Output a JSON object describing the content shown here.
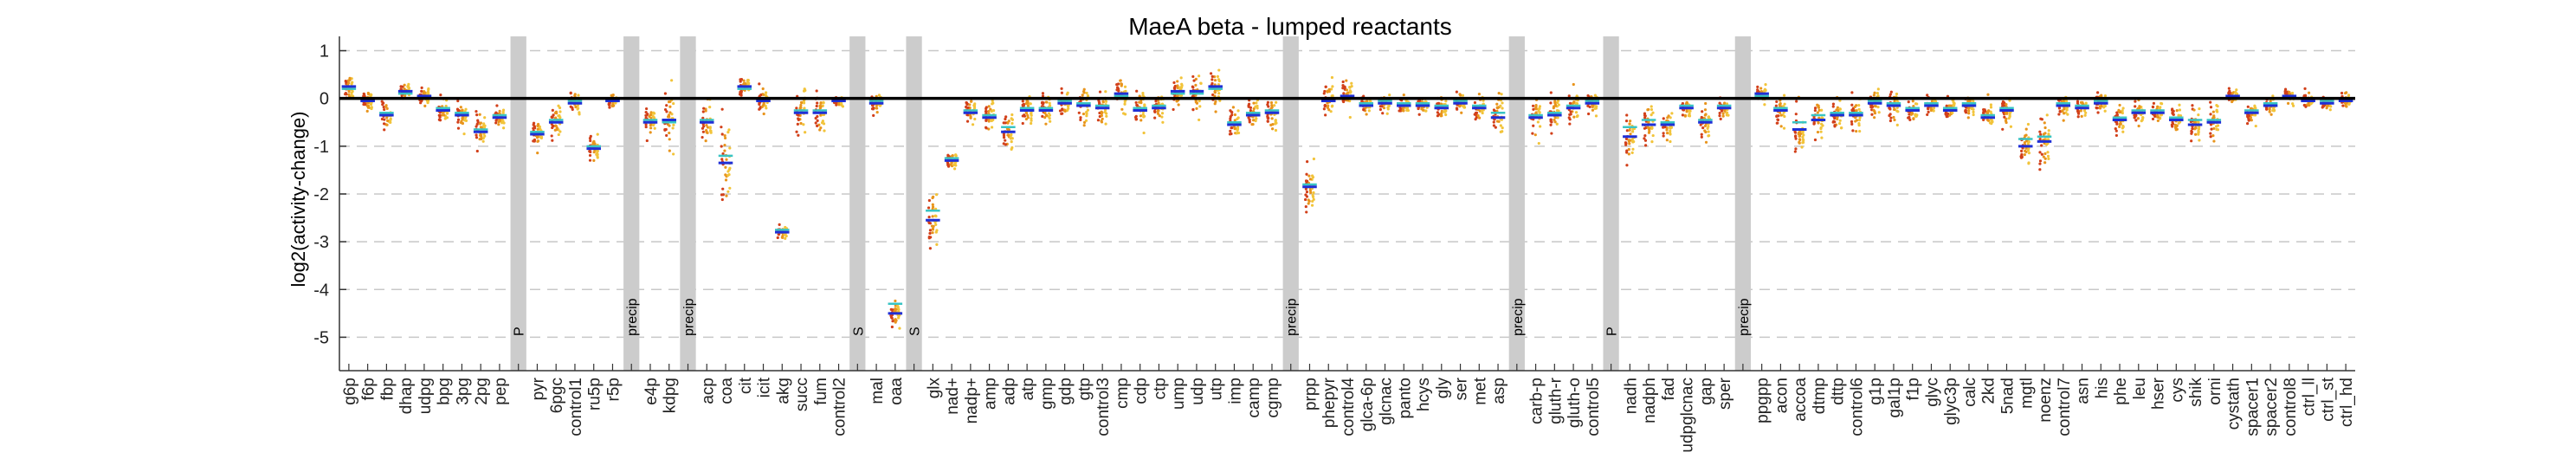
{
  "chart_data": {
    "type": "scatter",
    "title": "MaeA beta - lumped reactants",
    "xlabel": "",
    "ylabel": "log2(activity-change)",
    "ylim": [
      -5.7,
      1.3
    ],
    "yticks": [
      1,
      0,
      -1,
      -2,
      -3,
      -4,
      -5
    ],
    "grid": "horizontal dashed",
    "legend": "none",
    "colors": {
      "points_low": "#d2401a",
      "points_mid": "#e8941c",
      "points_high": "#f2c43a",
      "mean_line": "#1f2fd6",
      "median_line": "#39c4c4",
      "shaded_band": "#cccccc",
      "zero_line": "#000000"
    },
    "categories": [
      "g6p",
      "f6p",
      "fbp",
      "dhap",
      "udpg",
      "bpg",
      "3pg",
      "2pg",
      "pep",
      "",
      "pyr",
      "6pgc",
      "control1",
      "ru5p",
      "r5p",
      "",
      "e4p",
      "kdpg",
      "",
      "acp",
      "coa",
      "cit",
      "icit",
      "akg",
      "succ",
      "fum",
      "control2",
      "",
      "mal",
      "oaa",
      "",
      "glx",
      "nad+",
      "nadp+",
      "amp",
      "adp",
      "atp",
      "gmp",
      "gdp",
      "gtp",
      "control3",
      "cmp",
      "cdp",
      "ctp",
      "ump",
      "udp",
      "utp",
      "imp",
      "camp",
      "cgmp",
      "",
      "prpp",
      "phepyr",
      "control4",
      "glca-6p",
      "glcnac",
      "panto",
      "hcys",
      "gly",
      "ser",
      "met",
      "asp",
      "",
      "carb-p",
      "gluth-r",
      "gluth-o",
      "control5",
      "",
      "nadh",
      "nadph",
      "fad",
      "udpglcnac",
      "gap",
      "sper",
      "",
      "ppgpp",
      "acon",
      "accoa",
      "dtmp",
      "dttp",
      "control6",
      "g1p",
      "gal1p",
      "f1p",
      "glyc",
      "glyc3p",
      "calc",
      "2kd",
      "5nad",
      "mgtl",
      "noenz",
      "control7",
      "asn",
      "his",
      "phe",
      "leu",
      "hser",
      "cys",
      "shik",
      "orni",
      "cystath",
      "spacer1",
      "spacer2",
      "control8",
      "ctrl_ll",
      "ctrl_st",
      "ctrl_hd"
    ],
    "means": [
      0.25,
      -0.05,
      -0.35,
      0.15,
      0.05,
      -0.25,
      -0.35,
      -0.7,
      -0.4,
      null,
      -0.75,
      -0.5,
      -0.1,
      -1.05,
      -0.05,
      null,
      -0.5,
      -0.45,
      null,
      -0.5,
      -1.35,
      0.25,
      -0.05,
      -2.8,
      -0.3,
      -0.3,
      -0.05,
      null,
      -0.1,
      -4.5,
      null,
      -2.55,
      -1.3,
      -0.3,
      -0.4,
      -0.7,
      -0.25,
      -0.25,
      -0.1,
      -0.15,
      -0.2,
      0.1,
      -0.25,
      -0.2,
      0.15,
      0.15,
      0.25,
      -0.55,
      -0.35,
      -0.3,
      null,
      -1.85,
      -0.05,
      0.05,
      -0.15,
      -0.1,
      -0.15,
      -0.15,
      -0.2,
      -0.1,
      -0.2,
      -0.4,
      null,
      -0.4,
      -0.35,
      -0.2,
      -0.1,
      null,
      -0.8,
      -0.55,
      -0.55,
      -0.2,
      -0.5,
      -0.2,
      null,
      0.1,
      -0.25,
      -0.65,
      -0.45,
      -0.35,
      -0.35,
      -0.1,
      -0.15,
      -0.25,
      -0.15,
      -0.25,
      -0.15,
      -0.4,
      -0.25,
      -1.0,
      -0.9,
      -0.15,
      -0.2,
      -0.1,
      -0.45,
      -0.3,
      -0.3,
      -0.45,
      -0.55,
      -0.5,
      0.05,
      -0.3,
      -0.15,
      0.05,
      -0.05,
      -0.1,
      -0.05
    ],
    "medians": [
      0.2,
      -0.05,
      -0.3,
      0.1,
      0.05,
      -0.2,
      -0.3,
      -0.65,
      -0.35,
      null,
      -0.7,
      -0.45,
      -0.05,
      -1.0,
      -0.05,
      null,
      -0.45,
      -0.5,
      null,
      -0.45,
      -1.2,
      0.2,
      0.0,
      -2.75,
      -0.25,
      -0.25,
      0.0,
      null,
      -0.05,
      -4.3,
      null,
      -2.35,
      -1.25,
      -0.25,
      -0.35,
      -0.6,
      -0.2,
      -0.2,
      -0.05,
      -0.1,
      -0.15,
      0.05,
      -0.2,
      -0.15,
      0.1,
      0.1,
      0.2,
      -0.5,
      -0.3,
      -0.25,
      null,
      -1.8,
      0.0,
      0.0,
      -0.1,
      -0.05,
      -0.1,
      -0.1,
      -0.15,
      -0.05,
      -0.15,
      -0.3,
      null,
      -0.35,
      -0.3,
      -0.15,
      -0.05,
      null,
      -0.6,
      -0.45,
      -0.5,
      -0.15,
      -0.45,
      -0.15,
      null,
      0.05,
      -0.2,
      -0.5,
      -0.35,
      -0.3,
      -0.3,
      -0.05,
      -0.1,
      -0.2,
      -0.1,
      -0.2,
      -0.1,
      -0.35,
      -0.2,
      -0.85,
      -0.8,
      -0.1,
      -0.15,
      -0.05,
      -0.4,
      -0.25,
      -0.25,
      -0.4,
      -0.45,
      -0.45,
      0.0,
      -0.25,
      -0.1,
      0.0,
      0.0,
      -0.05,
      0.0
    ],
    "spreads": [
      0.3,
      0.2,
      0.3,
      0.15,
      0.2,
      0.25,
      0.25,
      0.35,
      0.2,
      null,
      0.3,
      0.35,
      0.2,
      0.3,
      0.2,
      null,
      0.3,
      0.6,
      null,
      0.45,
      1.0,
      0.2,
      0.25,
      0.15,
      0.5,
      0.4,
      0.15,
      null,
      0.2,
      0.35,
      null,
      0.5,
      0.2,
      0.3,
      0.35,
      0.5,
      0.3,
      0.35,
      0.3,
      0.35,
      0.35,
      0.4,
      0.4,
      0.3,
      0.3,
      0.4,
      0.4,
      0.35,
      0.35,
      0.35,
      null,
      0.5,
      0.4,
      0.4,
      0.2,
      0.2,
      0.2,
      0.2,
      0.25,
      0.25,
      0.3,
      0.45,
      null,
      0.4,
      0.4,
      0.35,
      0.35,
      null,
      0.4,
      0.4,
      0.3,
      0.2,
      0.35,
      0.2,
      null,
      0.15,
      0.45,
      0.55,
      0.4,
      0.45,
      0.5,
      0.25,
      0.3,
      0.25,
      0.2,
      0.25,
      0.2,
      0.3,
      0.35,
      0.45,
      0.6,
      0.3,
      0.2,
      0.2,
      0.3,
      0.25,
      0.2,
      0.3,
      0.4,
      0.45,
      0.2,
      0.2,
      0.2,
      0.15,
      0.15,
      0.15,
      0.15
    ],
    "shaded": [
      {
        "index": 9,
        "label": "P"
      },
      {
        "index": 15,
        "label": "precip"
      },
      {
        "index": 18,
        "label": "precip"
      },
      {
        "index": 27,
        "label": "S"
      },
      {
        "index": 30,
        "label": "S"
      },
      {
        "index": 50,
        "label": "precip"
      },
      {
        "index": 62,
        "label": "precip"
      },
      {
        "index": 67,
        "label": "P"
      },
      {
        "index": 74,
        "label": "precip"
      }
    ]
  }
}
